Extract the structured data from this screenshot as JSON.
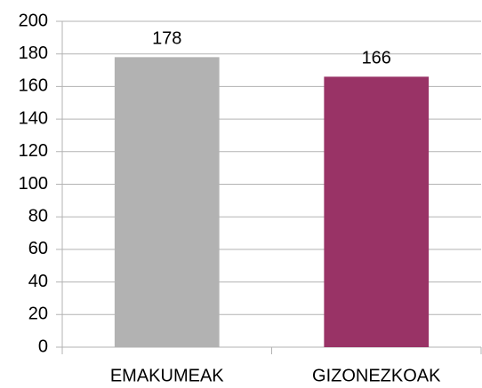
{
  "chart_data": {
    "type": "bar",
    "categories": [
      "EMAKUMEAK",
      "GIZONEZKOAK"
    ],
    "values": [
      178,
      166
    ],
    "colors": [
      "#b2b2b2",
      "#993366"
    ],
    "ylim": [
      0,
      200
    ],
    "yticks": [
      0,
      20,
      40,
      60,
      80,
      100,
      120,
      140,
      160,
      180,
      200
    ],
    "grid": true
  }
}
